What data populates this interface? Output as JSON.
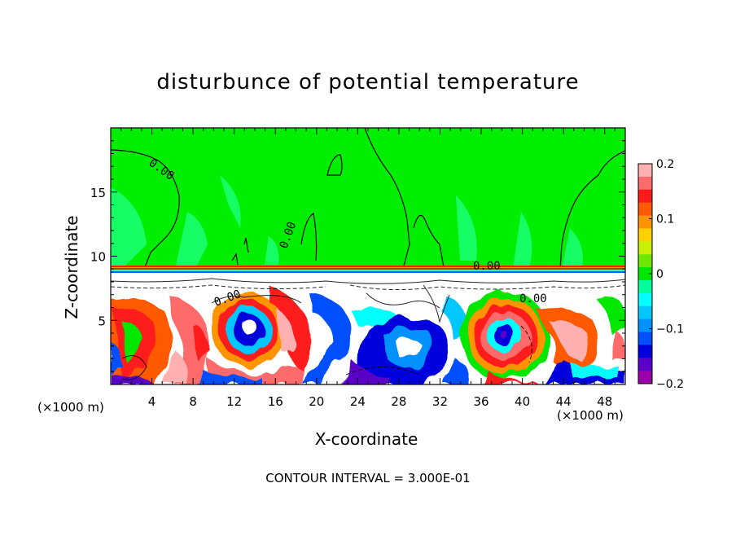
{
  "chart_data": {
    "type": "heatmap",
    "title": "disturbunce of potential temperature",
    "xlabel": "X-coordinate",
    "ylabel": "Z-coordinate",
    "x_unit": "(×1000 m)",
    "xlim": [
      0,
      50
    ],
    "ylim": [
      0,
      20
    ],
    "x_ticks": [
      4,
      8,
      12,
      16,
      20,
      24,
      28,
      32,
      36,
      40,
      44,
      48
    ],
    "y_ticks": [
      5,
      10,
      15
    ],
    "contour_labels": [
      "0.00",
      "0.00",
      "0.00",
      "0.00",
      "0.00"
    ],
    "colorbar": {
      "min": -0.2,
      "max": 0.2,
      "tick_labels": [
        "0.2",
        "0.1",
        "0",
        "−0.1",
        "−0.2"
      ],
      "tick_values": [
        0.2,
        0.1,
        0,
        -0.1,
        -0.2
      ],
      "colors": [
        "#ffb0b0",
        "#ff6a6a",
        "#ff1a1a",
        "#ff5a00",
        "#ff9400",
        "#ffd000",
        "#c8f000",
        "#6ee800",
        "#00e800",
        "#00ff9a",
        "#00ffff",
        "#00c8ff",
        "#0090ff",
        "#0050ff",
        "#0000dc",
        "#5a00c8",
        "#9a00a8"
      ]
    },
    "footer": "CONTOUR INTERVAL = 3.000E-01"
  }
}
